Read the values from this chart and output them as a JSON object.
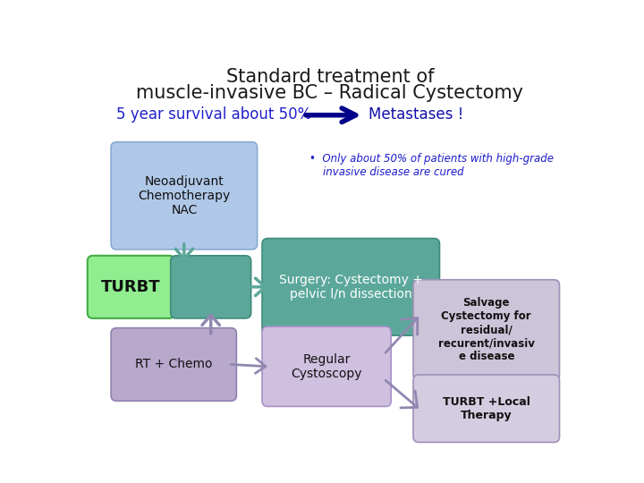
{
  "title_line1": "Standard treatment of",
  "title_line2": "muscle-invasive BC – Radical Cystectomy",
  "subtitle_left": "5 year survival about 50%",
  "subtitle_right": "Metastases !",
  "title_color": "#1a1a1a",
  "subtitle_left_color": "#2020cc",
  "subtitle_right_color": "#1010aa",
  "bg_color": "#ffffff",
  "bullet_text": "•  Only about 50% of patients with high-grade\n    invasive disease are cured",
  "bullet_color": "#1a1acc",
  "arrow_color_navy": "#00008b",
  "arrow_color_teal": "#5ba89a",
  "arrow_color_purple": "#9088b0",
  "neo_fc": "#b0c8e8",
  "neo_ec": "#88aad0",
  "turbt_fc": "#90ee90",
  "turbt_ec": "#44aa44",
  "mid_fc": "#5ba89a",
  "mid_ec": "#3d8a7a",
  "surg_fc": "#5ba89a",
  "surg_ec": "#3d8a7a",
  "rt_fc": "#b8a8cc",
  "rt_ec": "#9080b0",
  "cyst_fc": "#cfc0e0",
  "cyst_ec": "#a890c8",
  "salv_fc": "#ccc4d8",
  "salv_ec": "#a090b8",
  "local_fc": "#d4cce0",
  "local_ec": "#a090b8"
}
